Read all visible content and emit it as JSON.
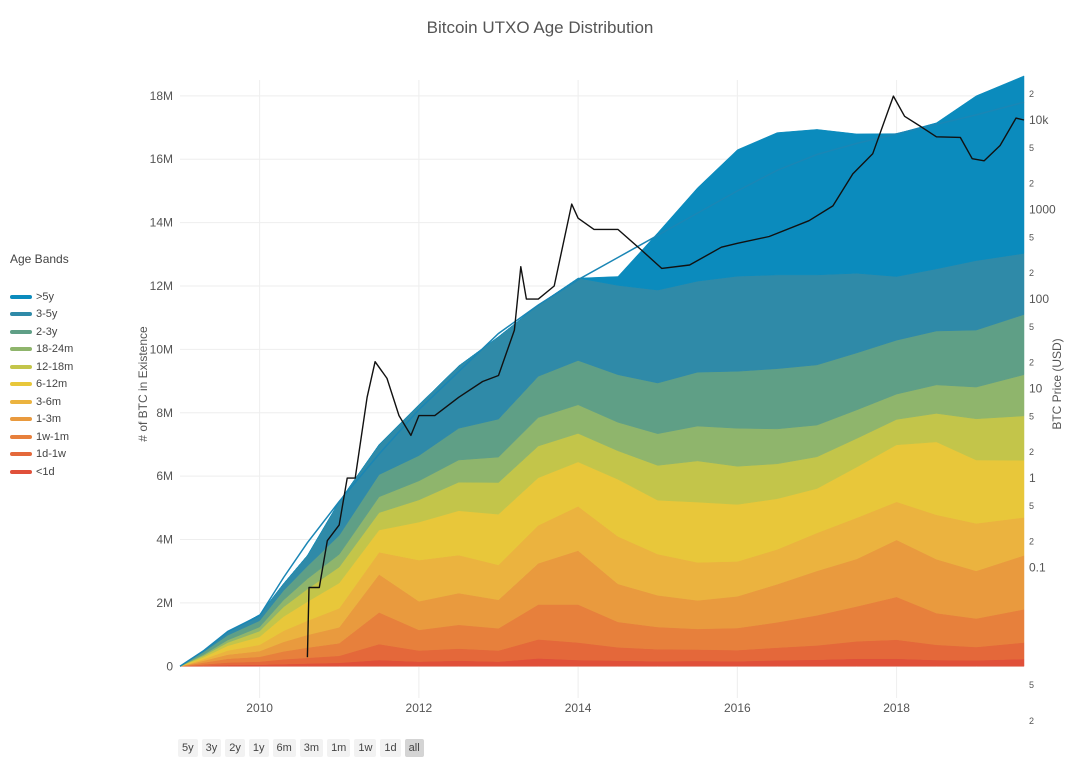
{
  "chart_data": {
    "type": "area",
    "title": "Bitcoin UTXO Age Distribution",
    "ylabel": "# of BTC in Existence",
    "y2label": "BTC Price (USD)",
    "xlabel": "",
    "x_ticks": [
      "2010",
      "2012",
      "2014",
      "2016",
      "2018"
    ],
    "y_ticks": [
      "0",
      "2M",
      "4M",
      "6M",
      "8M",
      "10M",
      "12M",
      "14M",
      "16M",
      "18M"
    ],
    "y2_ticks": [
      "2",
      "5",
      "0.1",
      "2",
      "5",
      "1",
      "2",
      "5",
      "10",
      "2",
      "5",
      "100",
      "2",
      "5",
      "1000",
      "2",
      "5",
      "10k",
      "2"
    ],
    "ylim": [
      -1000000,
      18500000
    ],
    "y2_scale": "log",
    "xlim": [
      2009.0,
      2019.6
    ],
    "legend_title": "Age Bands",
    "legend_position": "left",
    "grid": true,
    "x": [
      2009.0,
      2009.3,
      2009.6,
      2010.0,
      2010.3,
      2010.6,
      2011.0,
      2011.5,
      2012.0,
      2012.5,
      2013.0,
      2013.5,
      2014.0,
      2014.5,
      2015.0,
      2015.5,
      2016.0,
      2016.5,
      2017.0,
      2017.5,
      2018.0,
      2018.5,
      2019.0,
      2019.6
    ],
    "total_supply": [
      0,
      500000,
      1100000,
      1600000,
      2800000,
      3900000,
      5200000,
      6700000,
      8100000,
      9300000,
      10500000,
      11400000,
      12200000,
      12900000,
      13600000,
      14300000,
      15000000,
      15650000,
      16150000,
      16500000,
      16800000,
      17100000,
      17400000,
      17800000
    ],
    "series": [
      {
        "name": "<1d",
        "color": "#e0503a",
        "values": [
          0,
          20000,
          40000,
          50000,
          70000,
          90000,
          110000,
          200000,
          150000,
          180000,
          150000,
          250000,
          200000,
          180000,
          160000,
          170000,
          160000,
          190000,
          210000,
          240000,
          240000,
          200000,
          190000,
          230000
        ]
      },
      {
        "name": "1d-1w",
        "color": "#e4683a",
        "values": [
          0,
          40000,
          80000,
          100000,
          150000,
          180000,
          220000,
          500000,
          350000,
          380000,
          350000,
          600000,
          550000,
          420000,
          380000,
          360000,
          350000,
          400000,
          450000,
          550000,
          600000,
          480000,
          420000,
          520000
        ]
      },
      {
        "name": "1w-1m",
        "color": "#e7803c",
        "values": [
          0,
          60000,
          120000,
          150000,
          250000,
          320000,
          400000,
          1000000,
          650000,
          750000,
          700000,
          1100000,
          1200000,
          800000,
          700000,
          650000,
          700000,
          800000,
          950000,
          1100000,
          1350000,
          1000000,
          900000,
          1050000
        ]
      },
      {
        "name": "1-3m",
        "color": "#e99a3e",
        "values": [
          0,
          60000,
          130000,
          180000,
          300000,
          400000,
          500000,
          1200000,
          900000,
          1000000,
          900000,
          1300000,
          1700000,
          1200000,
          1000000,
          900000,
          1000000,
          1200000,
          1400000,
          1500000,
          1800000,
          1700000,
          1500000,
          1700000
        ]
      },
      {
        "name": "3-6m",
        "color": "#ebb33f",
        "values": [
          0,
          50000,
          130000,
          200000,
          350000,
          450000,
          600000,
          700000,
          1300000,
          1200000,
          1100000,
          1200000,
          1400000,
          1500000,
          1300000,
          1200000,
          1100000,
          1100000,
          1200000,
          1300000,
          1200000,
          1400000,
          1500000,
          1200000
        ]
      },
      {
        "name": "6-12m",
        "color": "#e8c73a",
        "values": [
          0,
          60000,
          150000,
          250000,
          450000,
          600000,
          800000,
          700000,
          1200000,
          1400000,
          1600000,
          1500000,
          1400000,
          1800000,
          1700000,
          1900000,
          1800000,
          1600000,
          1400000,
          1600000,
          1800000,
          2300000,
          2000000,
          1800000
        ]
      },
      {
        "name": "12-18m",
        "color": "#c3c54a",
        "values": [
          0,
          50000,
          100000,
          180000,
          300000,
          400000,
          500000,
          550000,
          700000,
          900000,
          1000000,
          1000000,
          900000,
          900000,
          1100000,
          1300000,
          1200000,
          1100000,
          1000000,
          900000,
          800000,
          900000,
          1300000,
          1400000
        ]
      },
      {
        "name": "18-24m",
        "color": "#8fb56c",
        "values": [
          0,
          40000,
          80000,
          130000,
          220000,
          320000,
          400000,
          500000,
          600000,
          700000,
          800000,
          900000,
          900000,
          900000,
          1000000,
          1100000,
          1200000,
          1100000,
          1000000,
          900000,
          800000,
          900000,
          1000000,
          1300000
        ]
      },
      {
        "name": "2-3y",
        "color": "#5f9f86",
        "values": [
          0,
          80000,
          150000,
          200000,
          300000,
          400000,
          600000,
          700000,
          800000,
          1000000,
          1200000,
          1300000,
          1400000,
          1500000,
          1600000,
          1700000,
          1800000,
          1900000,
          1900000,
          1800000,
          1700000,
          1700000,
          1800000,
          1900000
        ]
      },
      {
        "name": "3-5y",
        "color": "#2f8aa8",
        "values": [
          0,
          40000,
          100000,
          190000,
          215000,
          340000,
          1070000,
          950000,
          1600000,
          1970000,
          2600000,
          2250000,
          2600000,
          2820000,
          2930000,
          2870000,
          3000000,
          2960000,
          2840000,
          2510000,
          2010000,
          1960000,
          2190000,
          1930000
        ]
      },
      {
        "name": ">5y",
        "color": "#0b8bbd",
        "values": [
          0,
          0,
          0,
          0,
          0,
          0,
          0,
          0,
          0,
          0,
          0,
          0,
          0,
          280000,
          1810000,
          2950000,
          3990000,
          4490000,
          4590000,
          4400000,
          4510000,
          4610000,
          5200000,
          5600000
        ]
      }
    ],
    "price_series": {
      "name": "BTC Price (USD)",
      "color": "#111111",
      "x": [
        2010.6,
        2010.62,
        2010.75,
        2010.85,
        2011.0,
        2011.1,
        2011.2,
        2011.35,
        2011.45,
        2011.6,
        2011.75,
        2011.9,
        2012.0,
        2012.2,
        2012.5,
        2012.8,
        2013.0,
        2013.2,
        2013.28,
        2013.35,
        2013.5,
        2013.7,
        2013.92,
        2014.0,
        2014.2,
        2014.5,
        2014.8,
        2015.05,
        2015.4,
        2015.8,
        2016.0,
        2016.4,
        2016.9,
        2017.2,
        2017.45,
        2017.7,
        2017.96,
        2018.1,
        2018.3,
        2018.5,
        2018.8,
        2018.95,
        2019.1,
        2019.3,
        2019.5,
        2019.6
      ],
      "values": [
        0.01,
        0.06,
        0.06,
        0.2,
        0.3,
        1.0,
        1.0,
        8.0,
        20.0,
        13.0,
        5.0,
        3.0,
        5.0,
        5.0,
        8.0,
        12.0,
        14.0,
        45.0,
        230.0,
        100.0,
        100.0,
        140.0,
        1150.0,
        800.0,
        600.0,
        600.0,
        350.0,
        220.0,
        240.0,
        380.0,
        420.0,
        500.0,
        750.0,
        1100.0,
        2500.0,
        4200.0,
        18500.0,
        11000.0,
        8500.0,
        6500.0,
        6400.0,
        3700.0,
        3500.0,
        5200.0,
        10500.0,
        10000.0
      ]
    }
  },
  "range_buttons": [
    {
      "label": "5y",
      "active": false
    },
    {
      "label": "3y",
      "active": false
    },
    {
      "label": "2y",
      "active": false
    },
    {
      "label": "1y",
      "active": false
    },
    {
      "label": "6m",
      "active": false
    },
    {
      "label": "3m",
      "active": false
    },
    {
      "label": "1m",
      "active": false
    },
    {
      "label": "1w",
      "active": false
    },
    {
      "label": "1d",
      "active": false
    },
    {
      "label": "all",
      "active": true
    }
  ]
}
